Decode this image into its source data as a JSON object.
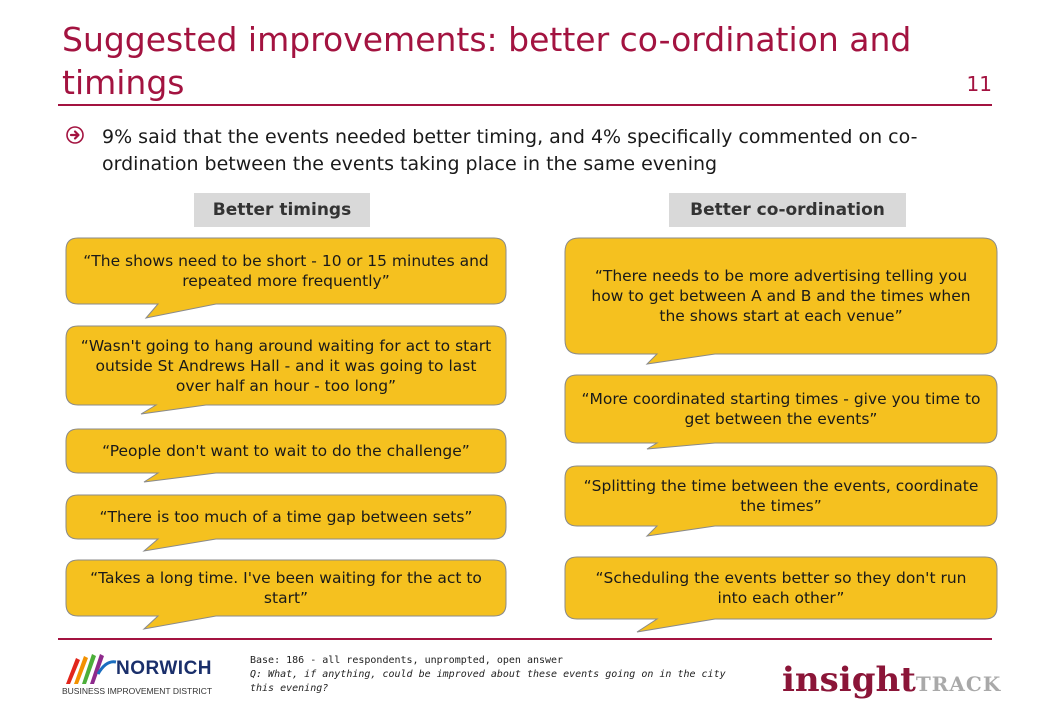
{
  "title": "Suggested improvements: better co-ordination and timings",
  "page_number": "11",
  "bullet": {
    "text": "9% said that the events needed better timing, and 4% specifically commented on co-ordination between the events taking place in the same evening"
  },
  "left_column": {
    "header": "Better timings",
    "quotes": [
      "“The shows need to be short - 10 or 15 minutes and repeated more frequently”",
      "“Wasn't going to hang around waiting for act to start outside St Andrews Hall - and it was going to last over half an hour - too long”",
      "“People don't want to wait to do the challenge”",
      "“There is too much of a time gap between sets”",
      "“Takes a long time. I've been waiting for the act to start”"
    ]
  },
  "right_column": {
    "header": "Better co-ordination",
    "quotes": [
      "“There needs to be more advertising telling you how to get between A and B and the times when the shows start at each venue”",
      "“More coordinated starting times - give you time to get between the events”",
      "“Splitting the time between the events, coordinate the times”",
      "“Scheduling the events better so they don't run into each other”"
    ]
  },
  "footer": {
    "base": "Base: 186 - all respondents, unprompted, open answer",
    "question": "Q: What, if anything, could be improved about these events going on in the city this evening?"
  },
  "logos": {
    "left_name": "NORWICH",
    "left_sub": "BUSINESS IMPROVEMENT DISTRICT",
    "right_main": "insight",
    "right_sub": "TRACK"
  },
  "colors": {
    "accent": "#a31340",
    "bubble": "#f5c11f",
    "header_bg": "#d9d9d9"
  }
}
